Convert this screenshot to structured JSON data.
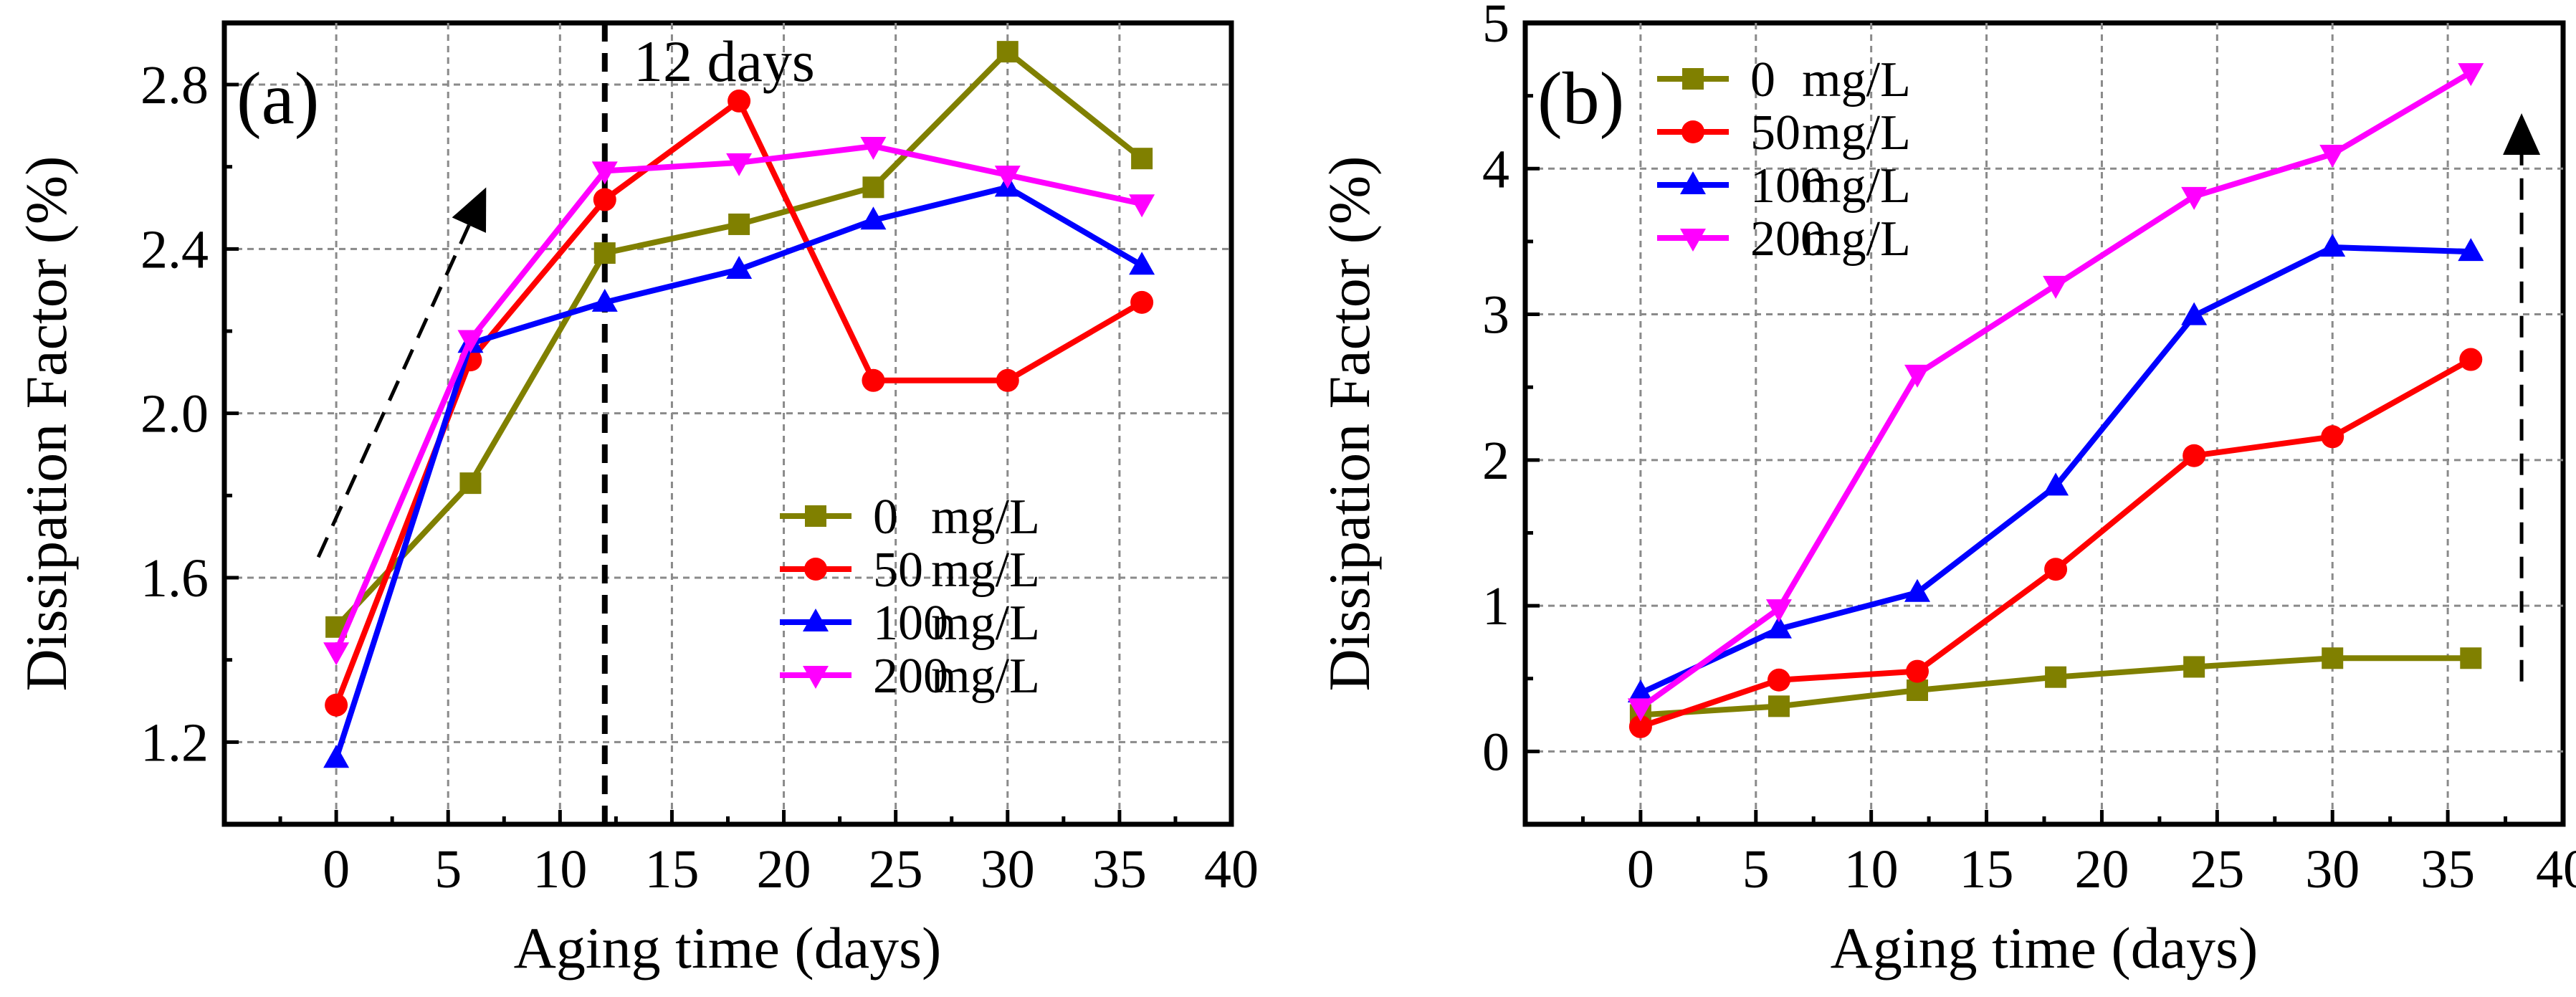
{
  "chart_data": [
    {
      "type": "line",
      "panel_label": "(a)",
      "xlabel": "Aging time (days)",
      "ylabel": "Dissipation  Factor (%)",
      "xlim": [
        -5,
        40
      ],
      "ylim": [
        1.0,
        2.95
      ],
      "xticks": [
        0,
        5,
        10,
        15,
        20,
        25,
        30,
        35,
        40
      ],
      "yticks": [
        1.2,
        1.6,
        2.0,
        2.4,
        2.8
      ],
      "ytick_labels": [
        "1.2",
        "1.6",
        "2.0",
        "2.4",
        "2.8"
      ],
      "grid": true,
      "legend_position": "lower-right",
      "annotation": {
        "text": "12 days",
        "x": 12
      },
      "trend_arrow": {
        "from": [
          -0.8,
          1.65
        ],
        "to": [
          6.7,
          2.55
        ]
      },
      "x": [
        0,
        6,
        12,
        18,
        24,
        30,
        36
      ],
      "series": [
        {
          "name": "0",
          "unit": "mg/L",
          "color": "#808000",
          "marker": "square",
          "values": [
            1.48,
            1.83,
            2.39,
            2.46,
            2.55,
            2.88,
            2.62
          ]
        },
        {
          "name": "50",
          "unit": "mg/L",
          "color": "#ff0000",
          "marker": "circle",
          "values": [
            1.29,
            2.13,
            2.52,
            2.76,
            2.08,
            2.08,
            2.27
          ]
        },
        {
          "name": "100",
          "unit": "mg/L",
          "color": "#0000ff",
          "marker": "triangle-up",
          "values": [
            1.16,
            2.17,
            2.27,
            2.35,
            2.47,
            2.55,
            2.36
          ]
        },
        {
          "name": "200",
          "unit": "mg/L",
          "color": "#ff00ff",
          "marker": "triangle-down",
          "values": [
            1.42,
            2.18,
            2.59,
            2.61,
            2.65,
            2.58,
            2.51
          ]
        }
      ]
    },
    {
      "type": "line",
      "panel_label": "(b)",
      "xlabel": "Aging time (days)",
      "ylabel": "Dissipation  Factor (%)",
      "xlim": [
        -5,
        40
      ],
      "ylim": [
        -0.5,
        5
      ],
      "xticks": [
        0,
        5,
        10,
        15,
        20,
        25,
        30,
        35,
        40
      ],
      "yticks": [
        0,
        1,
        2,
        3,
        4,
        5
      ],
      "ytick_labels": [
        "0",
        "1",
        "2",
        "3",
        "4",
        "5"
      ],
      "grid": true,
      "legend_position": "top-left",
      "trend_arrow": {
        "from": [
          38.2,
          0.48
        ],
        "to": [
          38.2,
          4.38
        ]
      },
      "x": [
        0,
        6,
        12,
        18,
        24,
        30,
        36
      ],
      "series": [
        {
          "name": "0",
          "unit": "mg/L",
          "color": "#808000",
          "marker": "square",
          "values": [
            0.25,
            0.31,
            0.42,
            0.51,
            0.58,
            0.64,
            0.64
          ]
        },
        {
          "name": "50",
          "unit": "mg/L",
          "color": "#ff0000",
          "marker": "circle",
          "values": [
            0.17,
            0.49,
            0.55,
            1.25,
            2.03,
            2.16,
            2.69
          ]
        },
        {
          "name": "100",
          "unit": "mg/L",
          "color": "#0000ff",
          "marker": "triangle-up",
          "values": [
            0.4,
            0.84,
            1.09,
            1.82,
            2.99,
            3.46,
            3.43
          ]
        },
        {
          "name": "200",
          "unit": "mg/L",
          "color": "#ff00ff",
          "marker": "triangle-down",
          "values": [
            0.3,
            0.98,
            2.59,
            3.2,
            3.81,
            4.1,
            4.66
          ]
        }
      ]
    }
  ]
}
